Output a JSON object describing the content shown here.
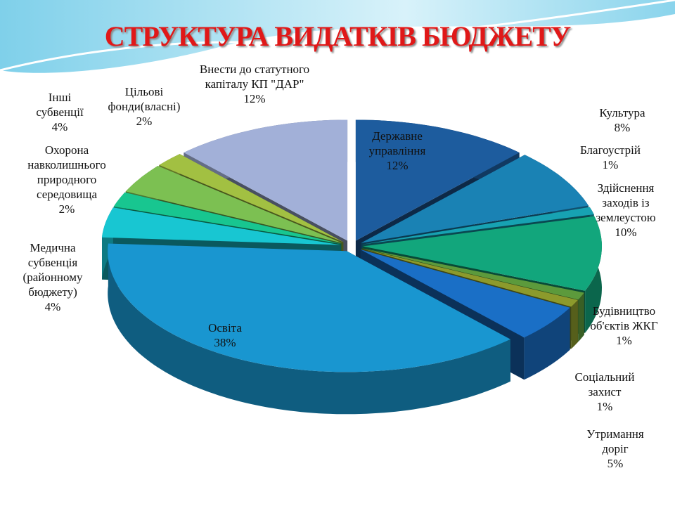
{
  "chart_data": {
    "type": "pie3d",
    "title": "СТРУКТУРА ВИДАТКІВ БЮДЖЕТУ",
    "categories": [
      "Державне управління",
      "Культура",
      "Благоустрій",
      "Здійснення заходів із землеустою",
      "Будівництво об'єктів ЖКГ",
      "Соціальний захист",
      "Утримання доріг",
      "Освіта",
      "Медична субвенція (районному бюджету)",
      "Охорона навколишнього природного середовища",
      "Інші субвенції",
      "Цільові фонди(власні)",
      "Внести до статутного капіталу КП \"ДАР\""
    ],
    "values": [
      12,
      8,
      1,
      10,
      1,
      1,
      5,
      38,
      4,
      2,
      4,
      2,
      12
    ],
    "value_labels": [
      "12%",
      "8%",
      "1%",
      "10%",
      "1%",
      "1%",
      "5%",
      "38%",
      "4%",
      "2%",
      "4%",
      "2%",
      "12%"
    ],
    "colors": [
      "#1d5c9e",
      "#1a82b4",
      "#17a2b2",
      "#12a67c",
      "#5c9a3c",
      "#8c9a2c",
      "#1a6fc6",
      "#1996d0",
      "#18c6d2",
      "#18c690",
      "#7cc052",
      "#a2c042",
      "#a2b0d8"
    ]
  }
}
